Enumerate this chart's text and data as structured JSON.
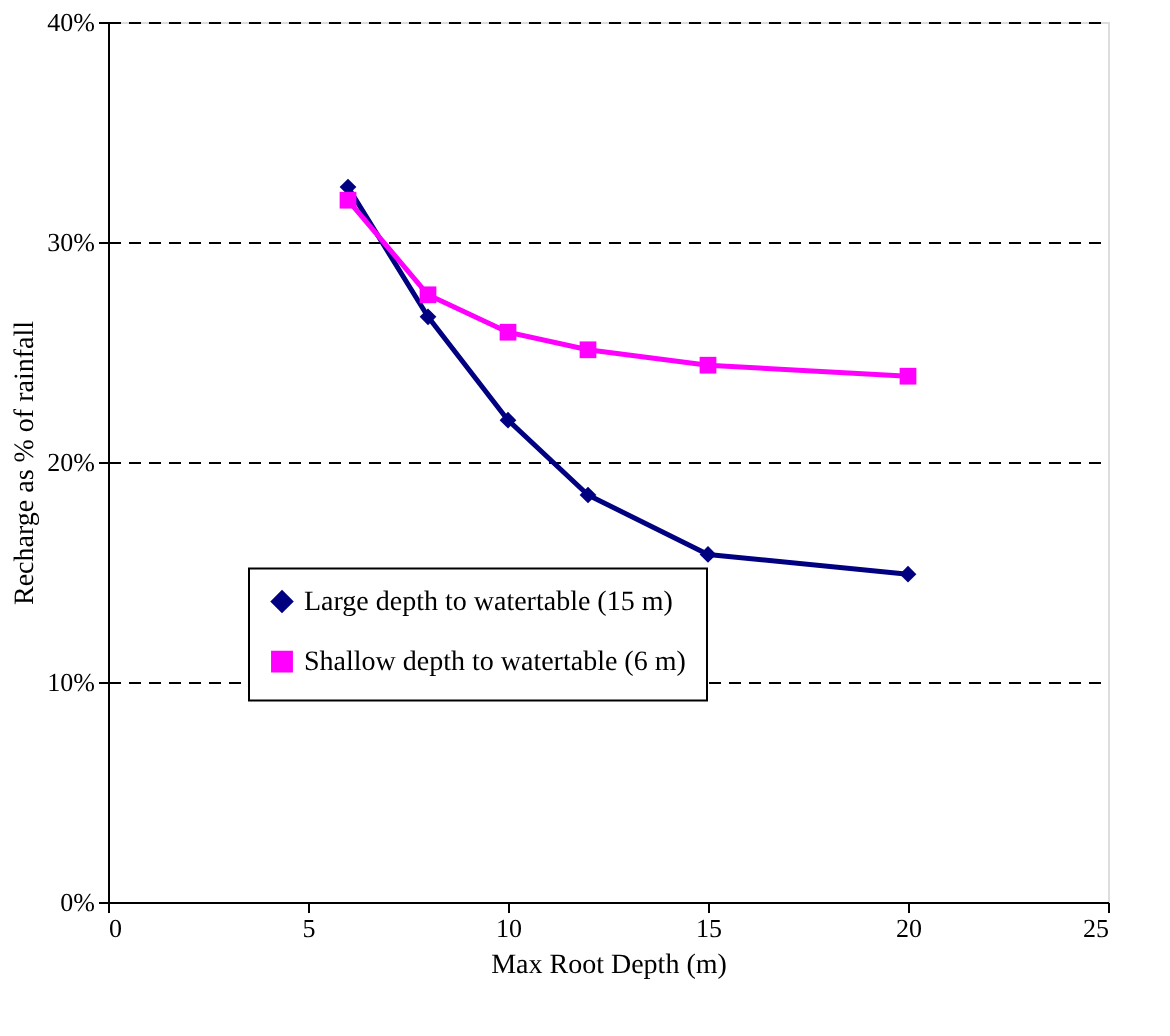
{
  "chart_data": {
    "type": "line",
    "xlabel": "Max Root Depth (m)",
    "ylabel": "Recharge as % of rainfall",
    "x": [
      6,
      8,
      10,
      12,
      15,
      20
    ],
    "series": [
      {
        "name": "Large depth to watertable (15 m)",
        "color": "#000080",
        "marker": "diamond",
        "values": [
          32.5,
          26.6,
          21.9,
          18.5,
          15.8,
          14.9
        ]
      },
      {
        "name": "Shallow depth to watertable (6 m)",
        "color": "#ff00ff",
        "marker": "square",
        "values": [
          31.9,
          27.6,
          25.9,
          25.1,
          24.4,
          23.9
        ]
      }
    ],
    "xlim": [
      0,
      25
    ],
    "xticks": [
      0,
      5,
      10,
      15,
      20,
      25
    ],
    "ylim": [
      0,
      40
    ],
    "yticks": [
      {
        "value": 0,
        "label": "0%"
      },
      {
        "value": 10,
        "label": "10%"
      },
      {
        "value": 20,
        "label": "20%"
      },
      {
        "value": 30,
        "label": "30%"
      },
      {
        "value": 40,
        "label": "40%"
      }
    ],
    "grid": "y",
    "legend": "bottom",
    "line_style": "solid"
  }
}
